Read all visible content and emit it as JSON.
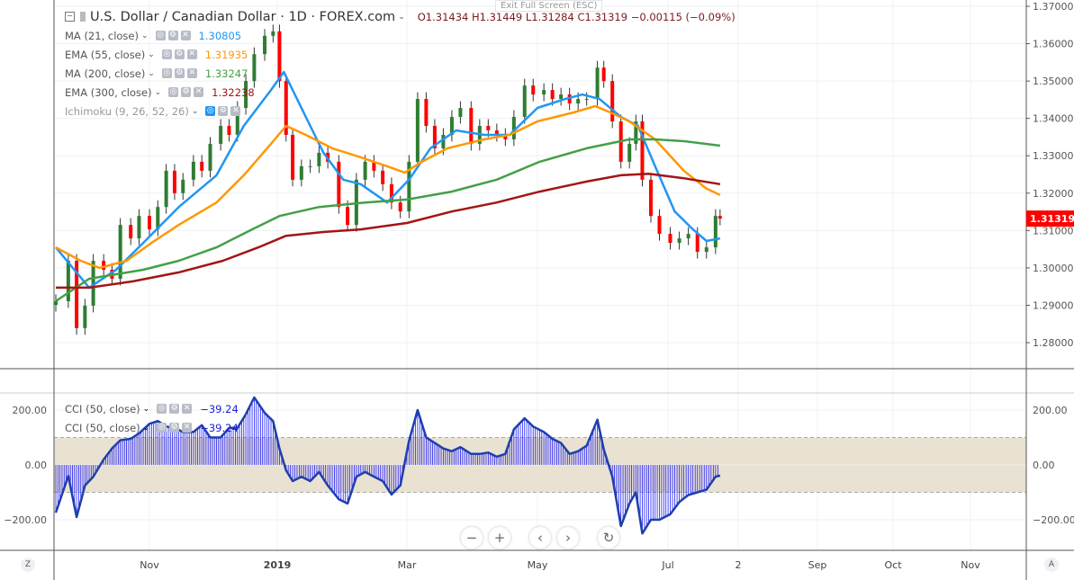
{
  "header": {
    "symbol_title": "U.S. Dollar / Canadian Dollar · 1D · FOREX.com",
    "ohlc": "O1.31434  H1.31449  L1.31284  C1.31319  −0.00115 (−0.09%)",
    "exit_fullscreen": "Exit Full Screen (ESC)"
  },
  "indicators": [
    {
      "label": "MA (21, close)",
      "value": "1.30805",
      "color": "#2196f3"
    },
    {
      "label": "EMA (55, close)",
      "value": "1.31935",
      "color": "#ff9800"
    },
    {
      "label": "MA (200, close)",
      "value": "1.33247",
      "color": "#43a047"
    },
    {
      "label": "EMA (300, close)",
      "value": "1.32238",
      "color": "#a31515"
    },
    {
      "label": "Ichimoku (9, 26, 52, 26)",
      "value": "",
      "color": "#999999"
    }
  ],
  "cci_legend": [
    {
      "label": "CCI (50, close)",
      "value": "−39.24",
      "color": "#1e22d6"
    },
    {
      "label": "CCI (50, close)",
      "value": "−39.24",
      "color": "#1e22d6"
    }
  ],
  "controls": {
    "zoom_out": "−",
    "zoom_in": "+",
    "scroll_left": "‹",
    "scroll_right": "›",
    "reset": "↻",
    "z_label": "Z",
    "a_label": "A"
  },
  "chart_data": [
    {
      "type": "candlestick",
      "title": "U.S. Dollar / Canadian Dollar · 1D · FOREX.com",
      "y_ticks": [
        "1.37000",
        "1.36000",
        "1.35000",
        "1.34000",
        "1.33000",
        "1.32000",
        "1.31000",
        "1.30000",
        "1.29000",
        "1.28000"
      ],
      "ylim": [
        1.2755,
        1.3715
      ],
      "last_price": "1.31319",
      "last_price_color": "#ff0000",
      "up_color": "#2e7d32",
      "down_color": "#ff0000",
      "x_ticks": [
        [
          "2018-11-01",
          "Nov"
        ],
        [
          "2019-01-01",
          "2019"
        ],
        [
          "2019-03-01",
          "Mar"
        ],
        [
          "2019-05-01",
          "May"
        ],
        [
          "2019-07-01",
          "Jul"
        ],
        [
          "2019-08-01",
          "2"
        ],
        [
          "2019-09-01",
          "Sep"
        ],
        [
          "2019-10-01",
          "Oct"
        ],
        [
          "2019-11-01",
          "Nov"
        ]
      ],
      "candles": [
        [
          "2018-09-17",
          1.2911
        ],
        [
          "2018-09-23",
          1.3019
        ],
        [
          "2018-09-27",
          1.2839
        ],
        [
          "2018-10-01",
          1.2899
        ],
        [
          "2018-10-05",
          1.3019
        ],
        [
          "2018-10-10",
          1.2995
        ],
        [
          "2018-10-14",
          1.2971
        ],
        [
          "2018-10-18",
          1.3115
        ],
        [
          "2018-10-23",
          1.3079
        ],
        [
          "2018-10-27",
          1.3139
        ],
        [
          "2018-11-01",
          1.3103
        ],
        [
          "2018-11-05",
          1.3163
        ],
        [
          "2018-11-09",
          1.326
        ],
        [
          "2018-11-13",
          1.32
        ],
        [
          "2018-11-17",
          1.3236
        ],
        [
          "2018-11-22",
          1.3284
        ],
        [
          "2018-11-26",
          1.326
        ],
        [
          "2018-11-30",
          1.3332
        ],
        [
          "2018-12-05",
          1.338
        ],
        [
          "2018-12-09",
          1.3356
        ],
        [
          "2018-12-13",
          1.3428
        ],
        [
          "2018-12-17",
          1.35
        ],
        [
          "2018-12-21",
          1.3572
        ],
        [
          "2018-12-26",
          1.3621
        ],
        [
          "2018-12-30",
          1.3633
        ],
        [
          "2019-01-02",
          1.35
        ],
        [
          "2019-01-05",
          1.3356
        ],
        [
          "2019-01-08",
          1.3236
        ],
        [
          "2019-01-12",
          1.3272
        ],
        [
          "2019-01-16",
          1.3272
        ],
        [
          "2019-01-20",
          1.3308
        ],
        [
          "2019-01-24",
          1.3284
        ],
        [
          "2019-01-29",
          1.3163
        ],
        [
          "2019-02-02",
          1.3115
        ],
        [
          "2019-02-06",
          1.3236
        ],
        [
          "2019-02-10",
          1.3284
        ],
        [
          "2019-02-14",
          1.326
        ],
        [
          "2019-02-18",
          1.3224
        ],
        [
          "2019-02-22",
          1.3175
        ],
        [
          "2019-02-26",
          1.3151
        ],
        [
          "2019-03-02",
          1.3284
        ],
        [
          "2019-03-06",
          1.3452
        ],
        [
          "2019-03-10",
          1.338
        ],
        [
          "2019-03-14",
          1.332
        ],
        [
          "2019-03-18",
          1.3356
        ],
        [
          "2019-03-22",
          1.3404
        ],
        [
          "2019-03-26",
          1.3428
        ],
        [
          "2019-03-31",
          1.3332
        ],
        [
          "2019-04-04",
          1.338
        ],
        [
          "2019-04-08",
          1.3368
        ],
        [
          "2019-04-12",
          1.3356
        ],
        [
          "2019-04-16",
          1.3344
        ],
        [
          "2019-04-20",
          1.3404
        ],
        [
          "2019-04-25",
          1.3488
        ],
        [
          "2019-04-29",
          1.3464
        ],
        [
          "2019-05-04",
          1.3476
        ],
        [
          "2019-05-08",
          1.3452
        ],
        [
          "2019-05-12",
          1.3464
        ],
        [
          "2019-05-16",
          1.344
        ],
        [
          "2019-05-20",
          1.3452
        ],
        [
          "2019-05-24",
          1.3452
        ],
        [
          "2019-05-29",
          1.3536
        ],
        [
          "2019-06-01",
          1.35
        ],
        [
          "2019-06-05",
          1.3392
        ],
        [
          "2019-06-09",
          1.3284
        ],
        [
          "2019-06-13",
          1.3332
        ],
        [
          "2019-06-16",
          1.3392
        ],
        [
          "2019-06-19",
          1.3236
        ],
        [
          "2019-06-23",
          1.3139
        ],
        [
          "2019-06-27",
          1.3091
        ],
        [
          "2019-07-02",
          1.3067
        ],
        [
          "2019-07-06",
          1.3079
        ],
        [
          "2019-07-10",
          1.3091
        ],
        [
          "2019-07-14",
          1.3043
        ],
        [
          "2019-07-18",
          1.3055
        ],
        [
          "2019-07-22",
          1.3139
        ],
        [
          "2019-07-24",
          1.3132
        ]
      ],
      "series": [
        {
          "name": "MA (21, close)",
          "color": "#2196f3",
          "points": [
            [
              "2018-09-17",
              1.3055
            ],
            [
              "2018-10-03",
              1.2947
            ],
            [
              "2018-10-16",
              1.2995
            ],
            [
              "2018-10-29",
              1.3067
            ],
            [
              "2018-11-15",
              1.3163
            ],
            [
              "2018-12-03",
              1.3248
            ],
            [
              "2018-12-16",
              1.338
            ],
            [
              "2018-12-29",
              1.3476
            ],
            [
              "2019-01-04",
              1.3524
            ],
            [
              "2019-01-14",
              1.3404
            ],
            [
              "2019-01-22",
              1.3308
            ],
            [
              "2019-01-31",
              1.3236
            ],
            [
              "2019-02-08",
              1.3224
            ],
            [
              "2019-02-20",
              1.3175
            ],
            [
              "2019-03-02",
              1.3236
            ],
            [
              "2019-03-12",
              1.332
            ],
            [
              "2019-03-24",
              1.3368
            ],
            [
              "2019-04-06",
              1.3356
            ],
            [
              "2019-04-18",
              1.3356
            ],
            [
              "2019-05-01",
              1.3428
            ],
            [
              "2019-05-14",
              1.3452
            ],
            [
              "2019-05-22",
              1.3464
            ],
            [
              "2019-05-30",
              1.3452
            ],
            [
              "2019-06-09",
              1.3404
            ],
            [
              "2019-06-17",
              1.338
            ],
            [
              "2019-06-25",
              1.3272
            ],
            [
              "2019-07-04",
              1.3151
            ],
            [
              "2019-07-12",
              1.3103
            ],
            [
              "2019-07-18",
              1.3072
            ],
            [
              "2019-07-24",
              1.3079
            ]
          ]
        },
        {
          "name": "EMA (55, close)",
          "color": "#ff9800",
          "points": [
            [
              "2018-09-17",
              1.3055
            ],
            [
              "2018-09-29",
              1.3019
            ],
            [
              "2018-10-08",
              1.3
            ],
            [
              "2018-10-21",
              1.3019
            ],
            [
              "2018-11-02",
              1.3067
            ],
            [
              "2018-11-15",
              1.3115
            ],
            [
              "2018-12-03",
              1.3175
            ],
            [
              "2018-12-16",
              1.3248
            ],
            [
              "2018-12-29",
              1.3332
            ],
            [
              "2019-01-05",
              1.338
            ],
            [
              "2019-01-14",
              1.3356
            ],
            [
              "2019-01-26",
              1.332
            ],
            [
              "2019-02-08",
              1.3296
            ],
            [
              "2019-02-20",
              1.3272
            ],
            [
              "2019-02-28",
              1.3255
            ],
            [
              "2019-03-08",
              1.3284
            ],
            [
              "2019-03-20",
              1.332
            ],
            [
              "2019-04-06",
              1.3344
            ],
            [
              "2019-04-18",
              1.3356
            ],
            [
              "2019-05-01",
              1.3392
            ],
            [
              "2019-05-18",
              1.3416
            ],
            [
              "2019-05-28",
              1.3433
            ],
            [
              "2019-06-04",
              1.3416
            ],
            [
              "2019-06-13",
              1.3392
            ],
            [
              "2019-06-25",
              1.3344
            ],
            [
              "2019-07-08",
              1.326
            ],
            [
              "2019-07-18",
              1.3212
            ],
            [
              "2019-07-24",
              1.3195
            ]
          ]
        },
        {
          "name": "MA (200, close)",
          "color": "#43a047",
          "points": [
            [
              "2018-09-17",
              1.2911
            ],
            [
              "2018-10-03",
              1.2971
            ],
            [
              "2018-10-16",
              1.2983
            ],
            [
              "2018-10-29",
              1.2995
            ],
            [
              "2018-11-15",
              1.3019
            ],
            [
              "2018-12-03",
              1.3055
            ],
            [
              "2018-12-20",
              1.3103
            ],
            [
              "2019-01-02",
              1.3139
            ],
            [
              "2019-01-20",
              1.3163
            ],
            [
              "2019-02-10",
              1.3175
            ],
            [
              "2019-03-01",
              1.3183
            ],
            [
              "2019-03-22",
              1.3204
            ],
            [
              "2019-04-12",
              1.3236
            ],
            [
              "2019-05-02",
              1.3284
            ],
            [
              "2019-05-24",
              1.332
            ],
            [
              "2019-06-13",
              1.3344
            ],
            [
              "2019-06-25",
              1.3344
            ],
            [
              "2019-07-08",
              1.3339
            ],
            [
              "2019-07-24",
              1.3327
            ]
          ]
        },
        {
          "name": "EMA (300, close)",
          "color": "#a31515",
          "points": [
            [
              "2018-09-17",
              1.2947
            ],
            [
              "2018-10-03",
              1.2947
            ],
            [
              "2018-10-24",
              1.2964
            ],
            [
              "2018-11-15",
              1.2988
            ],
            [
              "2018-12-06",
              1.3019
            ],
            [
              "2018-12-23",
              1.3055
            ],
            [
              "2019-01-05",
              1.3086
            ],
            [
              "2019-01-22",
              1.3096
            ],
            [
              "2019-02-08",
              1.3103
            ],
            [
              "2019-03-01",
              1.312
            ],
            [
              "2019-03-22",
              1.3151
            ],
            [
              "2019-04-12",
              1.3175
            ],
            [
              "2019-05-02",
              1.3204
            ],
            [
              "2019-05-24",
              1.3231
            ],
            [
              "2019-06-09",
              1.3248
            ],
            [
              "2019-06-22",
              1.3252
            ],
            [
              "2019-07-08",
              1.324
            ],
            [
              "2019-07-24",
              1.3224
            ]
          ]
        }
      ]
    },
    {
      "type": "line",
      "title": "CCI (50, close)",
      "y_ticks": [
        "200.00",
        "0.00",
        "−200.00"
      ],
      "ylim": [
        -310,
        260
      ],
      "band": [
        -100,
        100
      ],
      "band_color": "#e9e1d1",
      "color": "#1e3fae",
      "histogram_color": "#2020ff",
      "points": [
        [
          "2018-09-17",
          -174
        ],
        [
          "2018-09-23",
          -40
        ],
        [
          "2018-09-27",
          -190
        ],
        [
          "2018-10-01",
          -75
        ],
        [
          "2018-10-05",
          -43
        ],
        [
          "2018-10-10",
          20
        ],
        [
          "2018-10-14",
          60
        ],
        [
          "2018-10-18",
          90
        ],
        [
          "2018-10-23",
          95
        ],
        [
          "2018-10-27",
          115
        ],
        [
          "2018-11-01",
          150
        ],
        [
          "2018-11-05",
          160
        ],
        [
          "2018-11-09",
          140
        ],
        [
          "2018-11-13",
          135
        ],
        [
          "2018-11-17",
          120
        ],
        [
          "2018-11-22",
          120
        ],
        [
          "2018-11-26",
          145
        ],
        [
          "2018-11-30",
          100
        ],
        [
          "2018-12-05",
          100
        ],
        [
          "2018-12-09",
          135
        ],
        [
          "2018-12-13",
          135
        ],
        [
          "2018-12-17",
          185
        ],
        [
          "2018-12-21",
          246
        ],
        [
          "2018-12-26",
          190
        ],
        [
          "2018-12-30",
          160
        ],
        [
          "2019-01-02",
          60
        ],
        [
          "2019-01-05",
          -20
        ],
        [
          "2019-01-08",
          -59
        ],
        [
          "2019-01-12",
          -43
        ],
        [
          "2019-01-16",
          -59
        ],
        [
          "2019-01-20",
          -26
        ],
        [
          "2019-01-24",
          -75
        ],
        [
          "2019-01-29",
          -125
        ],
        [
          "2019-02-02",
          -141
        ],
        [
          "2019-02-06",
          -43
        ],
        [
          "2019-02-10",
          -26
        ],
        [
          "2019-02-14",
          -43
        ],
        [
          "2019-02-18",
          -59
        ],
        [
          "2019-02-22",
          -108
        ],
        [
          "2019-02-26",
          -75
        ],
        [
          "2019-03-02",
          89
        ],
        [
          "2019-03-06",
          200
        ],
        [
          "2019-03-10",
          100
        ],
        [
          "2019-03-14",
          80
        ],
        [
          "2019-03-18",
          60
        ],
        [
          "2019-03-22",
          50
        ],
        [
          "2019-03-26",
          65
        ],
        [
          "2019-03-31",
          40
        ],
        [
          "2019-04-04",
          40
        ],
        [
          "2019-04-08",
          45
        ],
        [
          "2019-04-12",
          30
        ],
        [
          "2019-04-16",
          40
        ],
        [
          "2019-04-20",
          130
        ],
        [
          "2019-04-25",
          170
        ],
        [
          "2019-04-29",
          140
        ],
        [
          "2019-05-04",
          120
        ],
        [
          "2019-05-08",
          95
        ],
        [
          "2019-05-12",
          80
        ],
        [
          "2019-05-16",
          40
        ],
        [
          "2019-05-20",
          50
        ],
        [
          "2019-05-24",
          70
        ],
        [
          "2019-05-29",
          165
        ],
        [
          "2019-06-01",
          56
        ],
        [
          "2019-06-05",
          -43
        ],
        [
          "2019-06-09",
          -223
        ],
        [
          "2019-06-13",
          -141
        ],
        [
          "2019-06-16",
          -100
        ],
        [
          "2019-06-19",
          -250
        ],
        [
          "2019-06-23",
          -200
        ],
        [
          "2019-06-27",
          -200
        ],
        [
          "2019-07-02",
          -180
        ],
        [
          "2019-07-06",
          -135
        ],
        [
          "2019-07-10",
          -110
        ],
        [
          "2019-07-14",
          -100
        ],
        [
          "2019-07-18",
          -90
        ],
        [
          "2019-07-22",
          -43
        ],
        [
          "2019-07-24",
          -39
        ]
      ]
    }
  ]
}
